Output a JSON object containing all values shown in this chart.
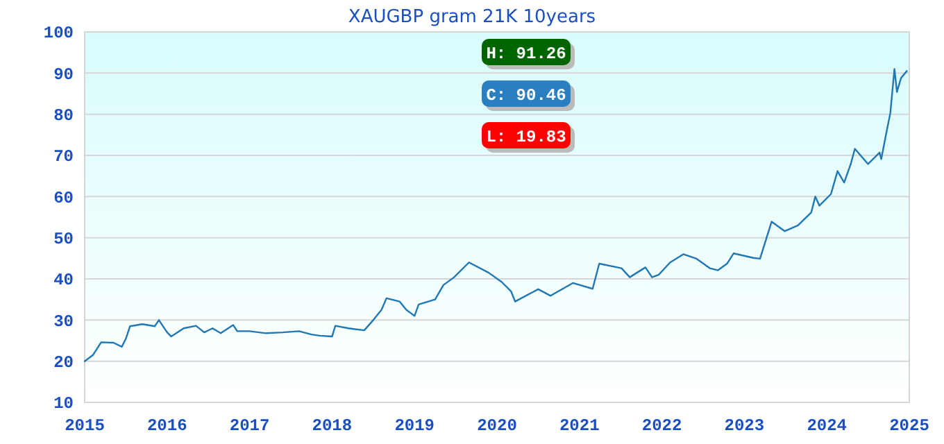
{
  "chart_data": {
    "type": "line",
    "title": "XAUGBP gram 21K 10years",
    "x": [
      2015.0,
      2015.1,
      2015.2,
      2015.35,
      2015.45,
      2015.5,
      2015.55,
      2015.7,
      2015.85,
      2015.9,
      2016.0,
      2016.05,
      2016.2,
      2016.35,
      2016.45,
      2016.55,
      2016.65,
      2016.8,
      2016.85,
      2017.0,
      2017.2,
      2017.4,
      2017.6,
      2017.75,
      2017.85,
      2018.0,
      2018.04,
      2018.2,
      2018.39,
      2018.5,
      2018.6,
      2018.66,
      2018.82,
      2018.9,
      2019.0,
      2019.05,
      2019.25,
      2019.35,
      2019.48,
      2019.66,
      2019.9,
      2020.06,
      2020.17,
      2020.22,
      2020.5,
      2020.65,
      2020.92,
      2021.16,
      2021.24,
      2021.51,
      2021.61,
      2021.8,
      2021.88,
      2021.96,
      2022.1,
      2022.26,
      2022.42,
      2022.58,
      2022.68,
      2022.79,
      2022.87,
      2023.11,
      2023.19,
      2023.33,
      2023.49,
      2023.65,
      2023.81,
      2023.86,
      2023.91,
      2024.05,
      2024.13,
      2024.21,
      2024.29,
      2024.34,
      2024.5,
      2024.64,
      2024.66,
      2024.72,
      2024.77,
      2024.82,
      2024.85,
      2024.9,
      2024.97
    ],
    "series": [
      {
        "color": "#1f77b4",
        "values": [
          20,
          21.5,
          24.6,
          24.5,
          23.5,
          25.5,
          28.5,
          29,
          28.5,
          30,
          27,
          26,
          28,
          28.6,
          27,
          28,
          26.8,
          28.8,
          27.3,
          27.3,
          26.8,
          27,
          27.3,
          26.5,
          26.2,
          26,
          28.6,
          28,
          27.5,
          30,
          32.5,
          35.3,
          34.5,
          32.5,
          31,
          33.8,
          35,
          38.5,
          40.4,
          44,
          41.5,
          39.2,
          37,
          34.5,
          37.5,
          35.9,
          39,
          37.6,
          43.7,
          42.6,
          40.4,
          42.8,
          40.4,
          41,
          44,
          46,
          44.9,
          42.6,
          42.1,
          43.7,
          46.2,
          45.1,
          44.9,
          53.9,
          51.6,
          53,
          56.1,
          60,
          57.8,
          60.6,
          66.2,
          63.4,
          67.9,
          71.6,
          67.9,
          70.7,
          69.1,
          75.3,
          80.3,
          91,
          85.4,
          88.8,
          90.5
        ]
      }
    ],
    "xlim": [
      2015,
      2025
    ],
    "xticks": [
      2015,
      2016,
      2017,
      2018,
      2019,
      2020,
      2021,
      2022,
      2023,
      2024,
      2025
    ],
    "ylim": [
      10,
      100
    ],
    "yticks": [
      10,
      20,
      30,
      40,
      50,
      60,
      70,
      80,
      90,
      100
    ],
    "grid": "y",
    "annotations": [
      "H: 91.26",
      "C: 90.46",
      "L: 19.83"
    ]
  }
}
